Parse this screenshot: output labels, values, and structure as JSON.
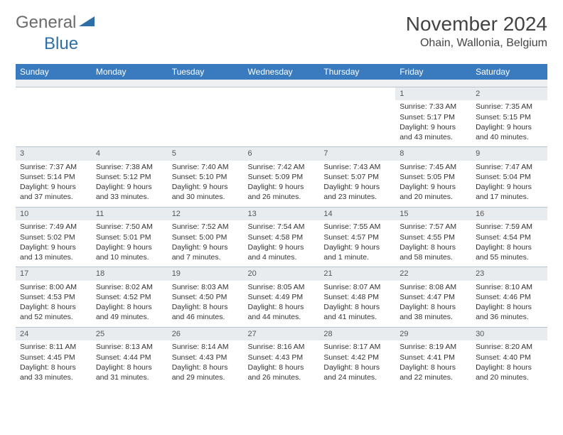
{
  "brand": {
    "part1": "General",
    "part2": "Blue",
    "triangle_color": "#2f6fa8"
  },
  "title": "November 2024",
  "location": "Ohain, Wallonia, Belgium",
  "header_bg": "#3a7bbf",
  "daynum_bg": "#e9ecef",
  "border_color": "#b8c4d0",
  "weekdays": [
    "Sunday",
    "Monday",
    "Tuesday",
    "Wednesday",
    "Thursday",
    "Friday",
    "Saturday"
  ],
  "weeks": [
    [
      null,
      null,
      null,
      null,
      null,
      {
        "n": "1",
        "sr": "7:33 AM",
        "ss": "5:17 PM",
        "dl": "9 hours and 43 minutes."
      },
      {
        "n": "2",
        "sr": "7:35 AM",
        "ss": "5:15 PM",
        "dl": "9 hours and 40 minutes."
      }
    ],
    [
      {
        "n": "3",
        "sr": "7:37 AM",
        "ss": "5:14 PM",
        "dl": "9 hours and 37 minutes."
      },
      {
        "n": "4",
        "sr": "7:38 AM",
        "ss": "5:12 PM",
        "dl": "9 hours and 33 minutes."
      },
      {
        "n": "5",
        "sr": "7:40 AM",
        "ss": "5:10 PM",
        "dl": "9 hours and 30 minutes."
      },
      {
        "n": "6",
        "sr": "7:42 AM",
        "ss": "5:09 PM",
        "dl": "9 hours and 26 minutes."
      },
      {
        "n": "7",
        "sr": "7:43 AM",
        "ss": "5:07 PM",
        "dl": "9 hours and 23 minutes."
      },
      {
        "n": "8",
        "sr": "7:45 AM",
        "ss": "5:05 PM",
        "dl": "9 hours and 20 minutes."
      },
      {
        "n": "9",
        "sr": "7:47 AM",
        "ss": "5:04 PM",
        "dl": "9 hours and 17 minutes."
      }
    ],
    [
      {
        "n": "10",
        "sr": "7:49 AM",
        "ss": "5:02 PM",
        "dl": "9 hours and 13 minutes."
      },
      {
        "n": "11",
        "sr": "7:50 AM",
        "ss": "5:01 PM",
        "dl": "9 hours and 10 minutes."
      },
      {
        "n": "12",
        "sr": "7:52 AM",
        "ss": "5:00 PM",
        "dl": "9 hours and 7 minutes."
      },
      {
        "n": "13",
        "sr": "7:54 AM",
        "ss": "4:58 PM",
        "dl": "9 hours and 4 minutes."
      },
      {
        "n": "14",
        "sr": "7:55 AM",
        "ss": "4:57 PM",
        "dl": "9 hours and 1 minute."
      },
      {
        "n": "15",
        "sr": "7:57 AM",
        "ss": "4:55 PM",
        "dl": "8 hours and 58 minutes."
      },
      {
        "n": "16",
        "sr": "7:59 AM",
        "ss": "4:54 PM",
        "dl": "8 hours and 55 minutes."
      }
    ],
    [
      {
        "n": "17",
        "sr": "8:00 AM",
        "ss": "4:53 PM",
        "dl": "8 hours and 52 minutes."
      },
      {
        "n": "18",
        "sr": "8:02 AM",
        "ss": "4:52 PM",
        "dl": "8 hours and 49 minutes."
      },
      {
        "n": "19",
        "sr": "8:03 AM",
        "ss": "4:50 PM",
        "dl": "8 hours and 46 minutes."
      },
      {
        "n": "20",
        "sr": "8:05 AM",
        "ss": "4:49 PM",
        "dl": "8 hours and 44 minutes."
      },
      {
        "n": "21",
        "sr": "8:07 AM",
        "ss": "4:48 PM",
        "dl": "8 hours and 41 minutes."
      },
      {
        "n": "22",
        "sr": "8:08 AM",
        "ss": "4:47 PM",
        "dl": "8 hours and 38 minutes."
      },
      {
        "n": "23",
        "sr": "8:10 AM",
        "ss": "4:46 PM",
        "dl": "8 hours and 36 minutes."
      }
    ],
    [
      {
        "n": "24",
        "sr": "8:11 AM",
        "ss": "4:45 PM",
        "dl": "8 hours and 33 minutes."
      },
      {
        "n": "25",
        "sr": "8:13 AM",
        "ss": "4:44 PM",
        "dl": "8 hours and 31 minutes."
      },
      {
        "n": "26",
        "sr": "8:14 AM",
        "ss": "4:43 PM",
        "dl": "8 hours and 29 minutes."
      },
      {
        "n": "27",
        "sr": "8:16 AM",
        "ss": "4:43 PM",
        "dl": "8 hours and 26 minutes."
      },
      {
        "n": "28",
        "sr": "8:17 AM",
        "ss": "4:42 PM",
        "dl": "8 hours and 24 minutes."
      },
      {
        "n": "29",
        "sr": "8:19 AM",
        "ss": "4:41 PM",
        "dl": "8 hours and 22 minutes."
      },
      {
        "n": "30",
        "sr": "8:20 AM",
        "ss": "4:40 PM",
        "dl": "8 hours and 20 minutes."
      }
    ]
  ],
  "labels": {
    "sunrise": "Sunrise:",
    "sunset": "Sunset:",
    "daylight": "Daylight:"
  }
}
